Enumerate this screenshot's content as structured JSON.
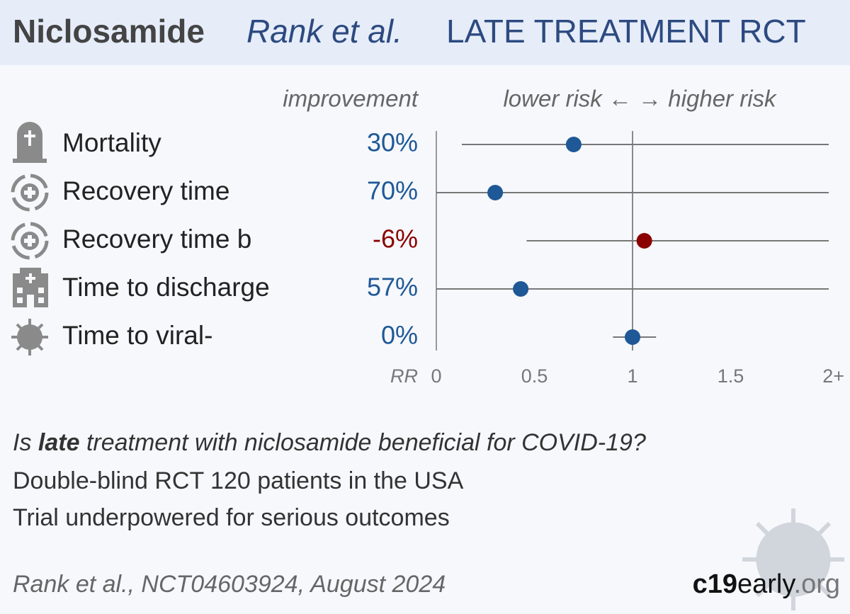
{
  "header": {
    "drug": "Niclosamide",
    "study": "Rank et al.",
    "setting": "LATE TREATMENT RCT"
  },
  "chart_data": {
    "type": "forest",
    "column_label": "improvement",
    "axis_caption": "lower risk ← → higher risk",
    "x_label": "RR",
    "categories": [
      "Mortality",
      "Recovery time",
      "Recovery time b",
      "Time to discharge",
      "Time to viral-"
    ],
    "improvement": [
      "30%",
      "70%",
      "-6%",
      "57%",
      "0%"
    ],
    "improvement_colors": [
      "#1f5896",
      "#1f5896",
      "#8b0000",
      "#1f5896",
      "#1f5896"
    ],
    "values": [
      0.7,
      0.3,
      1.06,
      0.43,
      1.0
    ],
    "ci_low": [
      0.13,
      0,
      0.46,
      0,
      0.9
    ],
    "ci_high": [
      2,
      2,
      2,
      2,
      1.12
    ],
    "colors": [
      "#1f5896",
      "#1f5896",
      "#8b0000",
      "#1f5896",
      "#1f5896"
    ],
    "xlim": [
      0,
      2
    ],
    "xticks": [
      0,
      0.5,
      1,
      1.5,
      {
        "value": 2,
        "label": "2+"
      }
    ],
    "reference": 1
  },
  "footer": {
    "question": [
      "Is ",
      "late",
      " treatment with niclosamide beneficial for COVID-19?"
    ],
    "lines": [
      "Double-blind RCT 120 patients in the USA",
      "Trial underpowered for serious outcomes"
    ],
    "citation": "Rank et al., NCT04603924, August 2024",
    "brand": [
      "c19",
      "early",
      ".org"
    ]
  }
}
